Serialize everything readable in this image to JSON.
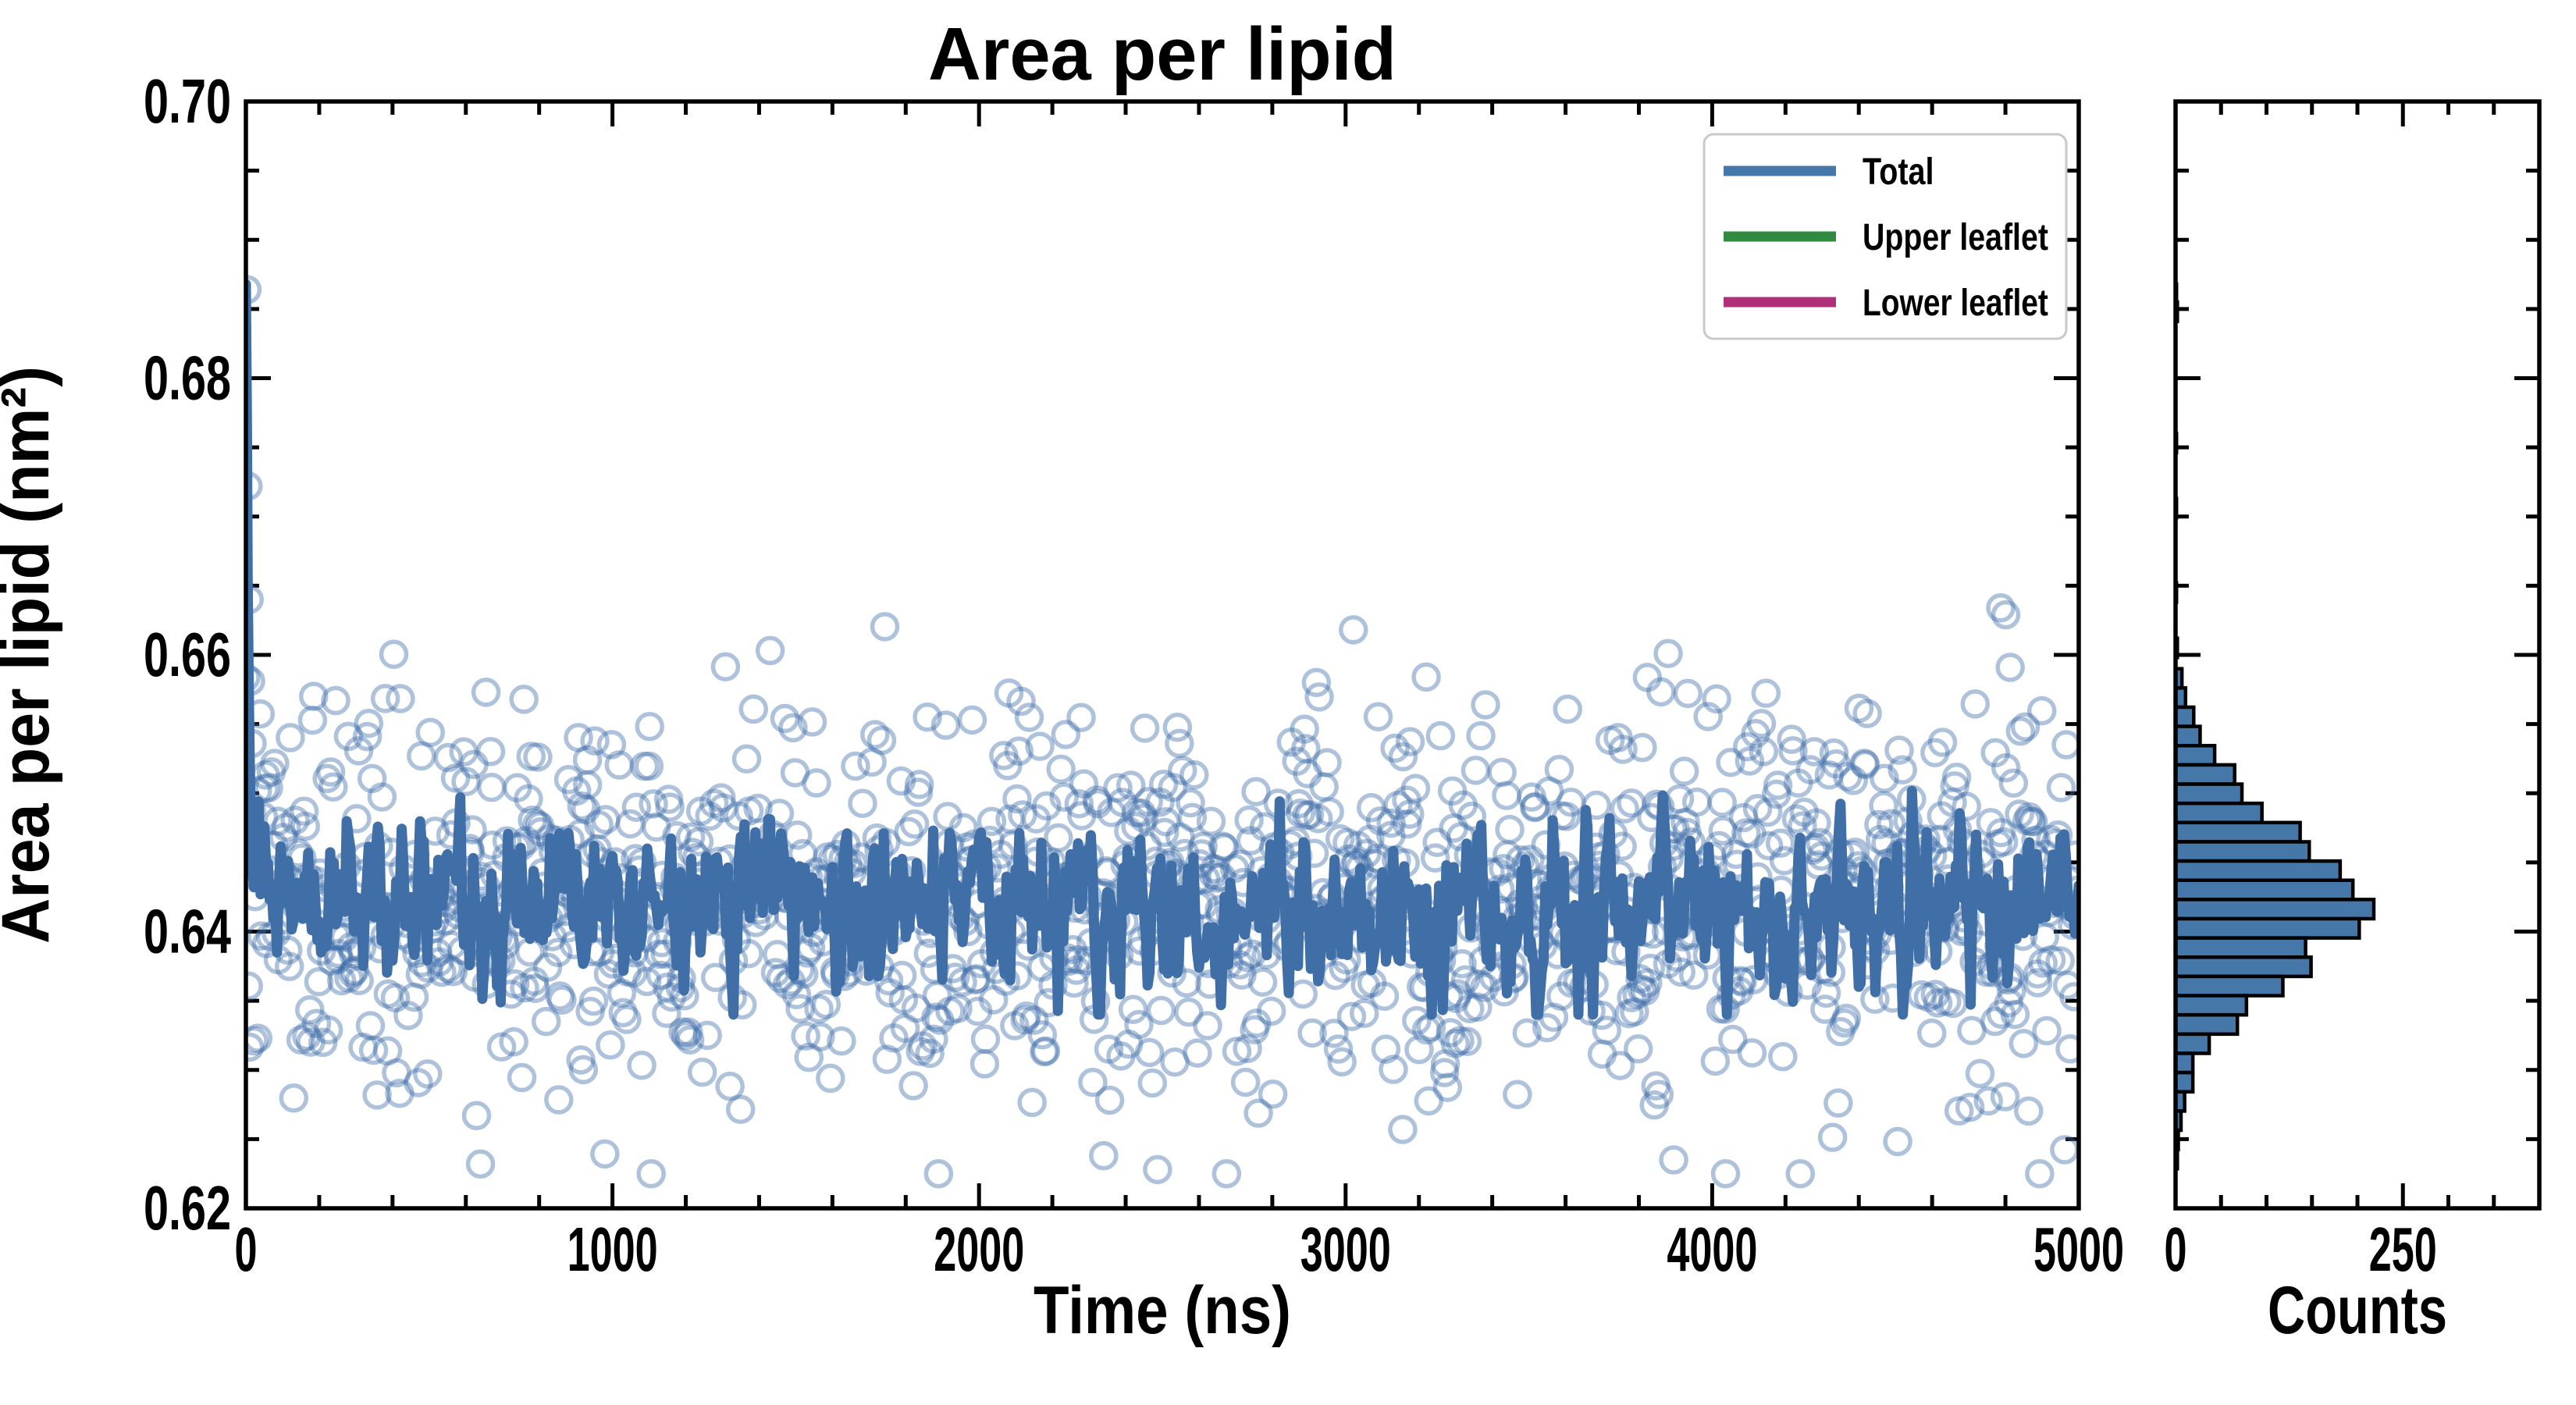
{
  "figure": {
    "background": "#ffffff"
  },
  "style": {
    "frame_color": "#000000",
    "tick_color": "#000000",
    "legend_border_color": "#c9c9c9",
    "legend_background": "#ffffff",
    "seed": 7
  },
  "legend": {
    "items": [
      {
        "label": "Total",
        "color": "#4577a8"
      },
      {
        "label": "Upper leaflet",
        "color": "#2e8b40",
        "swatch": "line"
      },
      {
        "label": "Lower leaflet",
        "color": "#ad3079",
        "swatch": "line"
      }
    ]
  },
  "chart_data": [
    {
      "type": "scatter",
      "title": "Area per lipid",
      "xlabel": "Time (ns)",
      "ylabel": "Area per lipid (nm²)",
      "xlim": [
        0,
        5000
      ],
      "ylim": [
        0.62,
        0.7
      ],
      "grid": false,
      "legend_position": "upper right",
      "x_major_ticks": [
        0,
        1000,
        2000,
        3000,
        4000,
        5000
      ],
      "x_major_tick_labels": [
        "0",
        "1000",
        "2000",
        "3000",
        "4000",
        "5000"
      ],
      "x_minor_tick_step": 200,
      "y_major_ticks": [
        0.7,
        0.68,
        0.66,
        0.64,
        0.62
      ],
      "y_major_tick_labels": [
        "0.70",
        "0.68",
        "0.66",
        "0.64",
        "0.62"
      ],
      "y_minor_tick_step": 0.005,
      "series": [
        {
          "name": "Total",
          "legend_label": "Total",
          "scatter_style": {
            "marker": "open-circle",
            "color": "#4577a8",
            "alpha": 0.42,
            "radius": 16,
            "stroke_width": 5.5
          },
          "scatter_params": {
            "n": 1250,
            "t_step": 4,
            "mean": 0.6425,
            "std": 0.0068,
            "clip_low": 0.6225,
            "clip_high": 0.6648
          },
          "scatter_transient_points": [
            [
              3,
              0.6864
            ],
            [
              6,
              0.6722
            ],
            [
              9,
              0.664
            ],
            [
              13,
              0.6581
            ],
            [
              17,
              0.6536
            ]
          ],
          "scatter_outlier_points": [
            [
              3880,
              0.6601
            ],
            [
              4787,
              0.6634
            ],
            [
              4801,
              0.6629
            ],
            [
              4813,
              0.6591
            ],
            [
              245,
              0.6567
            ],
            [
              655,
              0.6573
            ],
            [
              640,
              0.6232
            ],
            [
              2340,
              0.6238
            ],
            [
              3895,
              0.6235
            ],
            [
              2487,
              0.6228
            ]
          ],
          "line_style": {
            "color": "#3f6fa6",
            "width": 13
          },
          "line_params": {
            "mean": 0.642,
            "ar_phi": 0.45,
            "noise_std": 0.0026,
            "t_step": 5,
            "clip_low": 0.634,
            "clip_high": 0.6505
          },
          "line_transient": [
            [
              0,
              0.6868
            ],
            [
              3,
              0.6762
            ],
            [
              5,
              0.6655
            ],
            [
              8,
              0.6572
            ],
            [
              11,
              0.6512
            ],
            [
              14,
              0.6468
            ],
            [
              18,
              0.6444
            ],
            [
              22,
              0.6432
            ]
          ]
        },
        {
          "name": "Upper leaflet",
          "legend_label": "Upper leaflet",
          "color": "#2e8b40",
          "visible_in_plot": false
        },
        {
          "name": "Lower leaflet",
          "legend_label": "Lower leaflet",
          "color": "#ad3079",
          "visible_in_plot": false
        }
      ]
    },
    {
      "type": "bar-horizontal-histogram",
      "xlabel": "Counts",
      "xlim": [
        0,
        400
      ],
      "ylim": [
        0.62,
        0.7
      ],
      "x_major_ticks": [
        0,
        250
      ],
      "x_major_tick_labels": [
        "0",
        "250"
      ],
      "x_minor_tick_step": 50,
      "bar_color": "#4577a8",
      "bar_edge_color": "#000000",
      "bins_top_value": 0.659,
      "bin_width": 0.00139,
      "counts_top_to_bottom": [
        7,
        11,
        20,
        27,
        43,
        65,
        73,
        95,
        137,
        147,
        181,
        195,
        218,
        202,
        143,
        149,
        118,
        78,
        68,
        37,
        19,
        19,
        10,
        6,
        3,
        2
      ],
      "outlier_bins": [
        {
          "value_top": 0.6868,
          "count": 1
        },
        {
          "value_top": 0.6855,
          "count": 2
        },
        {
          "value_top": 0.676,
          "count": 1
        },
        {
          "value_top": 0.6713,
          "count": 1
        },
        {
          "value_top": 0.6652,
          "count": 1
        },
        {
          "value_top": 0.6612,
          "count": 2
        }
      ]
    }
  ]
}
